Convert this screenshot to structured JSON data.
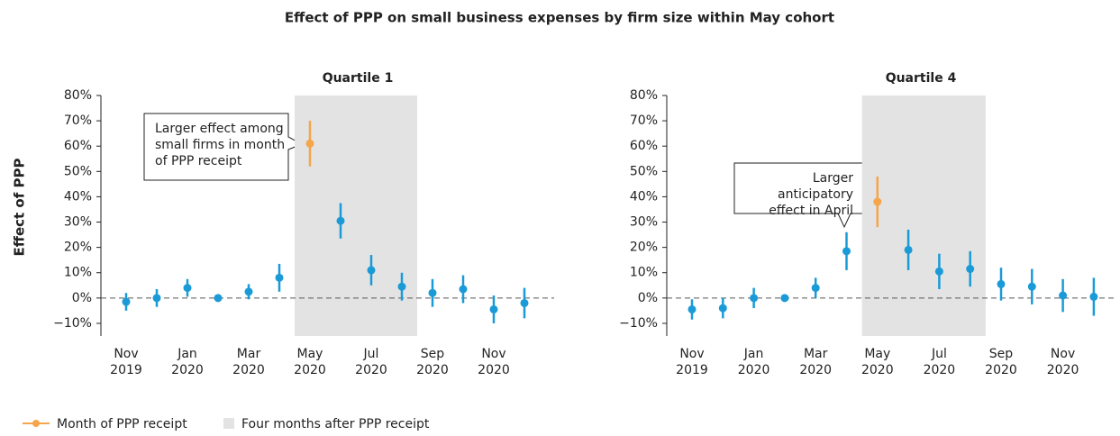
{
  "title": "Effect of PPP on small business expenses by firm size within May cohort",
  "ylabel": "Effect of PPP",
  "legend": [
    {
      "label": "Month of PPP receipt",
      "color": "#f5a54a"
    },
    {
      "label": "Four months after PPP receipt",
      "color": "#e3e3e3"
    }
  ],
  "chart_data": [
    {
      "type": "errorbar",
      "title": "Quartile 1",
      "categories": [
        "Nov\n2019",
        null,
        "Jan\n2020",
        null,
        "Mar\n2020",
        null,
        "May\n2020",
        null,
        "Jul\n2020",
        null,
        "Sep\n2020",
        null,
        "Nov\n2020",
        null
      ],
      "values": [
        -1.5,
        0,
        4,
        0,
        2.5,
        8,
        61,
        30.5,
        11,
        4.5,
        2,
        3.5,
        -4.5,
        -2
      ],
      "errors": [
        3.5,
        3.5,
        3.5,
        0.5,
        3,
        5.5,
        9,
        7,
        6,
        5.5,
        5.5,
        5.5,
        5.5,
        6
      ],
      "colors": [
        "#1a9bd7",
        "#1a9bd7",
        "#1a9bd7",
        "#1a9bd7",
        "#1a9bd7",
        "#1a9bd7",
        "#f5a54a",
        "#1a9bd7",
        "#1a9bd7",
        "#1a9bd7",
        "#1a9bd7",
        "#1a9bd7",
        "#1a9bd7",
        "#1a9bd7"
      ],
      "shade": [
        6,
        9
      ],
      "hline": 0,
      "ylim": [
        -15,
        80
      ],
      "yticks": [
        {
          "value": -10,
          "label": "−10%"
        },
        {
          "value": 0,
          "label": "0%"
        },
        {
          "value": 10,
          "label": "10%"
        },
        {
          "value": 20,
          "label": "20%"
        },
        {
          "value": 30,
          "label": "30%"
        },
        {
          "value": 40,
          "label": "40%"
        },
        {
          "value": 50,
          "label": "50%"
        },
        {
          "value": 60,
          "label": "60%"
        },
        {
          "value": 70,
          "label": "70%"
        },
        {
          "value": 80,
          "label": "80%"
        }
      ],
      "annotation": "Larger effect among\nsmall firms in month\nof PPP receipt"
    },
    {
      "type": "errorbar",
      "title": "Quartile 4",
      "categories": [
        "Nov\n2019",
        null,
        "Jan\n2020",
        null,
        "Mar\n2020",
        null,
        "May\n2020",
        null,
        "Jul\n2020",
        null,
        "Sep\n2020",
        null,
        "Nov\n2020",
        null
      ],
      "values": [
        -4.5,
        -4,
        0,
        0,
        4,
        18.5,
        38,
        19,
        10.5,
        11.5,
        5.5,
        4.5,
        1,
        0.5
      ],
      "errors": [
        4,
        4,
        4,
        0.5,
        4,
        7.5,
        10,
        8,
        7,
        7,
        6.5,
        7,
        6.5,
        7.5
      ],
      "colors": [
        "#1a9bd7",
        "#1a9bd7",
        "#1a9bd7",
        "#1a9bd7",
        "#1a9bd7",
        "#1a9bd7",
        "#f5a54a",
        "#1a9bd7",
        "#1a9bd7",
        "#1a9bd7",
        "#1a9bd7",
        "#1a9bd7",
        "#1a9bd7",
        "#1a9bd7"
      ],
      "shade": [
        6,
        9
      ],
      "hline": 0,
      "ylim": [
        -15,
        80
      ],
      "yticks": [
        {
          "value": -10,
          "label": "−10%"
        },
        {
          "value": 0,
          "label": "0%"
        },
        {
          "value": 10,
          "label": "10%"
        },
        {
          "value": 20,
          "label": "20%"
        },
        {
          "value": 30,
          "label": "30%"
        },
        {
          "value": 40,
          "label": "40%"
        },
        {
          "value": 50,
          "label": "50%"
        },
        {
          "value": 60,
          "label": "60%"
        },
        {
          "value": 70,
          "label": "70%"
        },
        {
          "value": 80,
          "label": "80%"
        }
      ],
      "annotation": "Larger anticipatory\neffect in April"
    }
  ]
}
